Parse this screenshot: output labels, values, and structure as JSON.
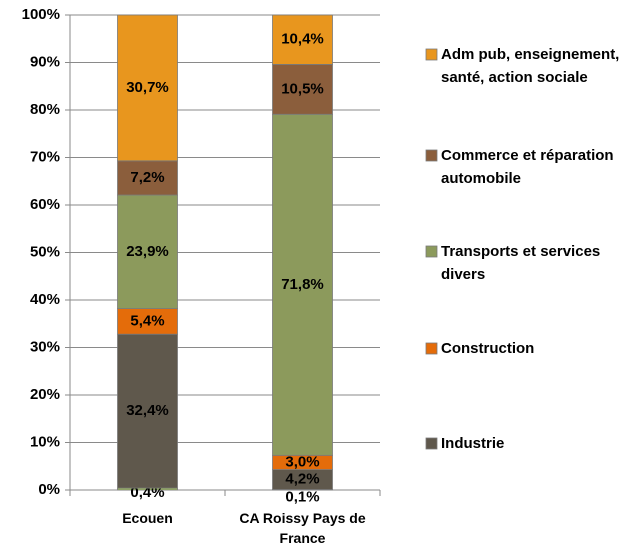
{
  "chart_data": {
    "type": "stacked_bar",
    "categories": [
      "Ecouen",
      "CA Roissy Pays de France"
    ],
    "series": [
      {
        "name": null,
        "color": "#9bbb59",
        "values": [
          0.4,
          0.1
        ],
        "value_labels": [
          "0,4%",
          "0,1%"
        ]
      },
      {
        "name": "Industrie",
        "color": "#5f584c",
        "values": [
          32.4,
          4.2
        ],
        "value_labels": [
          "32,4%",
          "4,2%"
        ]
      },
      {
        "name": "Construction",
        "color": "#e46c0a",
        "values": [
          5.4,
          3.0
        ],
        "value_labels": [
          "5,4%",
          "3,0%"
        ]
      },
      {
        "name": "Transports et services divers",
        "color": "#8c9a5c",
        "values": [
          23.9,
          71.8
        ],
        "value_labels": [
          "23,9%",
          "71,8%"
        ]
      },
      {
        "name": "Commerce et réparation automobile",
        "color": "#8b5e3c",
        "values": [
          7.2,
          10.5
        ],
        "value_labels": [
          "7,2%",
          "10,5%"
        ]
      },
      {
        "name": "Adm pub, enseignement, santé, action sociale",
        "color": "#e8961e",
        "values": [
          30.7,
          10.4
        ],
        "value_labels": [
          "30,7%",
          "10,4%"
        ]
      }
    ],
    "ylim": [
      0,
      100
    ],
    "yticks": [
      {
        "value": 0,
        "label": "0%"
      },
      {
        "value": 10,
        "label": "10%"
      },
      {
        "value": 20,
        "label": "20%"
      },
      {
        "value": 30,
        "label": "30%"
      },
      {
        "value": 40,
        "label": "40%"
      },
      {
        "value": 50,
        "label": "50%"
      },
      {
        "value": 60,
        "label": "60%"
      },
      {
        "value": 70,
        "label": "70%"
      },
      {
        "value": 80,
        "label": "80%"
      },
      {
        "value": 90,
        "label": "90%"
      },
      {
        "value": 100,
        "label": "100%"
      }
    ],
    "grid": true
  }
}
